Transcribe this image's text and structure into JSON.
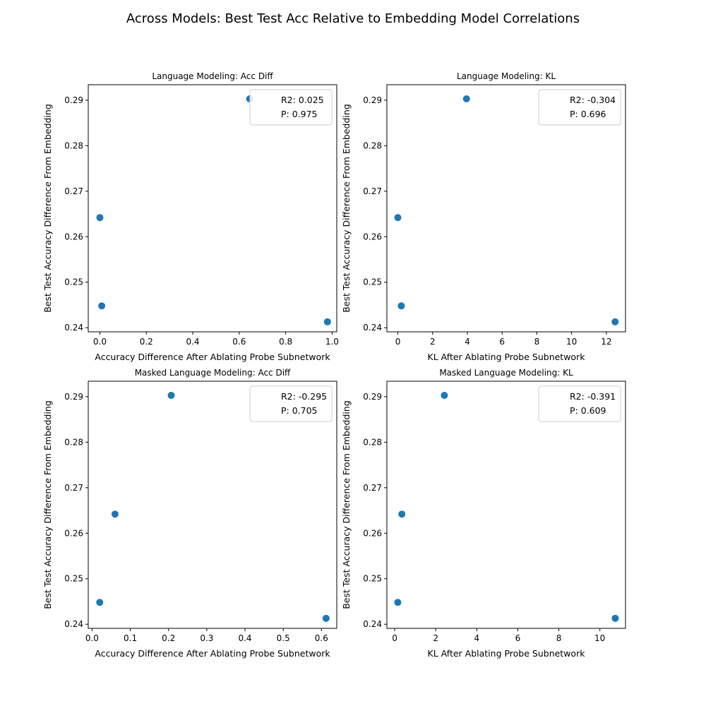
{
  "figure_title": "Across Models: Best Test Acc Relative to Embedding Model Correlations",
  "colors": {
    "point": "#1f77b4",
    "axis": "#000000",
    "legend_border": "#cccccc"
  },
  "chart_data": [
    {
      "type": "scatter",
      "title": "Language Modeling: Acc Diff",
      "xlabel": "Accuracy Difference After Ablating Probe Subnetwork",
      "ylabel": "Best Test Accuracy Difference From Embedding",
      "xlim": [
        -0.05,
        1.02
      ],
      "ylim": [
        0.2391,
        0.2934
      ],
      "xticks": [
        0.0,
        0.2,
        0.4,
        0.6,
        0.8,
        1.0
      ],
      "xtick_labels": [
        "0.0",
        "0.2",
        "0.4",
        "0.6",
        "0.8",
        "1.0"
      ],
      "yticks": [
        0.24,
        0.25,
        0.26,
        0.27,
        0.28,
        0.29
      ],
      "ytick_labels": [
        "0.24",
        "0.25",
        "0.26",
        "0.27",
        "0.28",
        "0.29"
      ],
      "points": [
        {
          "x": 0.0,
          "y": 0.2642
        },
        {
          "x": 0.008,
          "y": 0.2448
        },
        {
          "x": 0.645,
          "y": 0.2903
        },
        {
          "x": 0.98,
          "y": 0.2413
        }
      ],
      "legend": {
        "position": "top-right",
        "lines": [
          "R2: 0.025",
          "P: 0.975"
        ]
      }
    },
    {
      "type": "scatter",
      "title": "Language Modeling: KL",
      "xlabel": "KL After Ablating Probe Subnetwork",
      "ylabel": "Best Test Accuracy Difference From Embedding",
      "xlim": [
        -0.63,
        13.1
      ],
      "ylim": [
        0.2391,
        0.2934
      ],
      "xticks": [
        0,
        2,
        4,
        6,
        8,
        10,
        12
      ],
      "xtick_labels": [
        "0",
        "2",
        "4",
        "6",
        "8",
        "10",
        "12"
      ],
      "yticks": [
        0.24,
        0.25,
        0.26,
        0.27,
        0.28,
        0.29
      ],
      "ytick_labels": [
        "0.24",
        "0.25",
        "0.26",
        "0.27",
        "0.28",
        "0.29"
      ],
      "points": [
        {
          "x": 0.0,
          "y": 0.2642
        },
        {
          "x": 0.2,
          "y": 0.2448
        },
        {
          "x": 3.95,
          "y": 0.2903
        },
        {
          "x": 12.5,
          "y": 0.2413
        }
      ],
      "legend": {
        "position": "top-right",
        "lines": [
          "R2: -0.304",
          "P: 0.696"
        ]
      }
    },
    {
      "type": "scatter",
      "title": "Masked Language Modeling: Acc Diff",
      "xlabel": "Accuracy Difference After Ablating Probe Subnetwork",
      "ylabel": "Best Test Accuracy Difference From Embedding",
      "xlim": [
        -0.01,
        0.64
      ],
      "ylim": [
        0.2391,
        0.2934
      ],
      "xticks": [
        0.0,
        0.1,
        0.2,
        0.3,
        0.4,
        0.5,
        0.6
      ],
      "xtick_labels": [
        "0.0",
        "0.1",
        "0.2",
        "0.3",
        "0.4",
        "0.5",
        "0.6"
      ],
      "yticks": [
        0.24,
        0.25,
        0.26,
        0.27,
        0.28,
        0.29
      ],
      "ytick_labels": [
        "0.24",
        "0.25",
        "0.26",
        "0.27",
        "0.28",
        "0.29"
      ],
      "points": [
        {
          "x": 0.06,
          "y": 0.2642
        },
        {
          "x": 0.02,
          "y": 0.2448
        },
        {
          "x": 0.207,
          "y": 0.2903
        },
        {
          "x": 0.612,
          "y": 0.2413
        }
      ],
      "legend": {
        "position": "top-right",
        "lines": [
          "R2: -0.295",
          "P: 0.705"
        ]
      }
    },
    {
      "type": "scatter",
      "title": "Masked Language Modeling: KL",
      "xlabel": "KL After Ablating Probe Subnetwork",
      "ylabel": "Best Test Accuracy Difference From Embedding",
      "xlim": [
        -0.38,
        11.25
      ],
      "ylim": [
        0.2391,
        0.2934
      ],
      "xticks": [
        0,
        2,
        4,
        6,
        8,
        10
      ],
      "xtick_labels": [
        "0",
        "2",
        "4",
        "6",
        "8",
        "10"
      ],
      "yticks": [
        0.24,
        0.25,
        0.26,
        0.27,
        0.28,
        0.29
      ],
      "ytick_labels": [
        "0.24",
        "0.25",
        "0.26",
        "0.27",
        "0.28",
        "0.29"
      ],
      "points": [
        {
          "x": 0.35,
          "y": 0.2642
        },
        {
          "x": 0.15,
          "y": 0.2448
        },
        {
          "x": 2.42,
          "y": 0.2903
        },
        {
          "x": 10.75,
          "y": 0.2413
        }
      ],
      "legend": {
        "position": "top-right",
        "lines": [
          "R2: -0.391",
          "P: 0.609"
        ]
      }
    }
  ]
}
